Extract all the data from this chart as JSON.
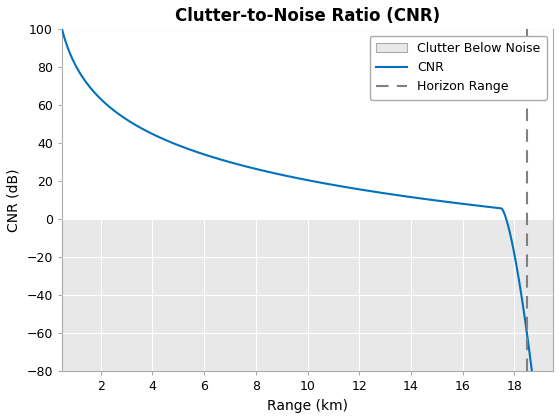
{
  "title": "Clutter-to-Noise Ratio (CNR)",
  "xlabel": "Range (km)",
  "ylabel": "CNR (dB)",
  "xlim": [
    0.5,
    19.5
  ],
  "ylim": [
    -80,
    100
  ],
  "yticks": [
    -80,
    -60,
    -40,
    -20,
    0,
    20,
    40,
    60,
    80,
    100
  ],
  "xticks": [
    2,
    4,
    6,
    8,
    10,
    12,
    14,
    16,
    18
  ],
  "horizon_range": 18.5,
  "cnr_line_color": "#0072BD",
  "horizon_line_color": "#808080",
  "clutter_below_noise_color": "#E8E8E8",
  "legend_labels": [
    "Clutter Below Noise",
    "CNR",
    "Horizon Range"
  ],
  "background_color": "#FFFFFF",
  "grid_color": "#FFFFFF",
  "axes_bg_color": "#E8E8E8",
  "above_zero_color": "#FFFFFF",
  "title_fontsize": 12,
  "label_fontsize": 10,
  "legend_fontsize": 9
}
